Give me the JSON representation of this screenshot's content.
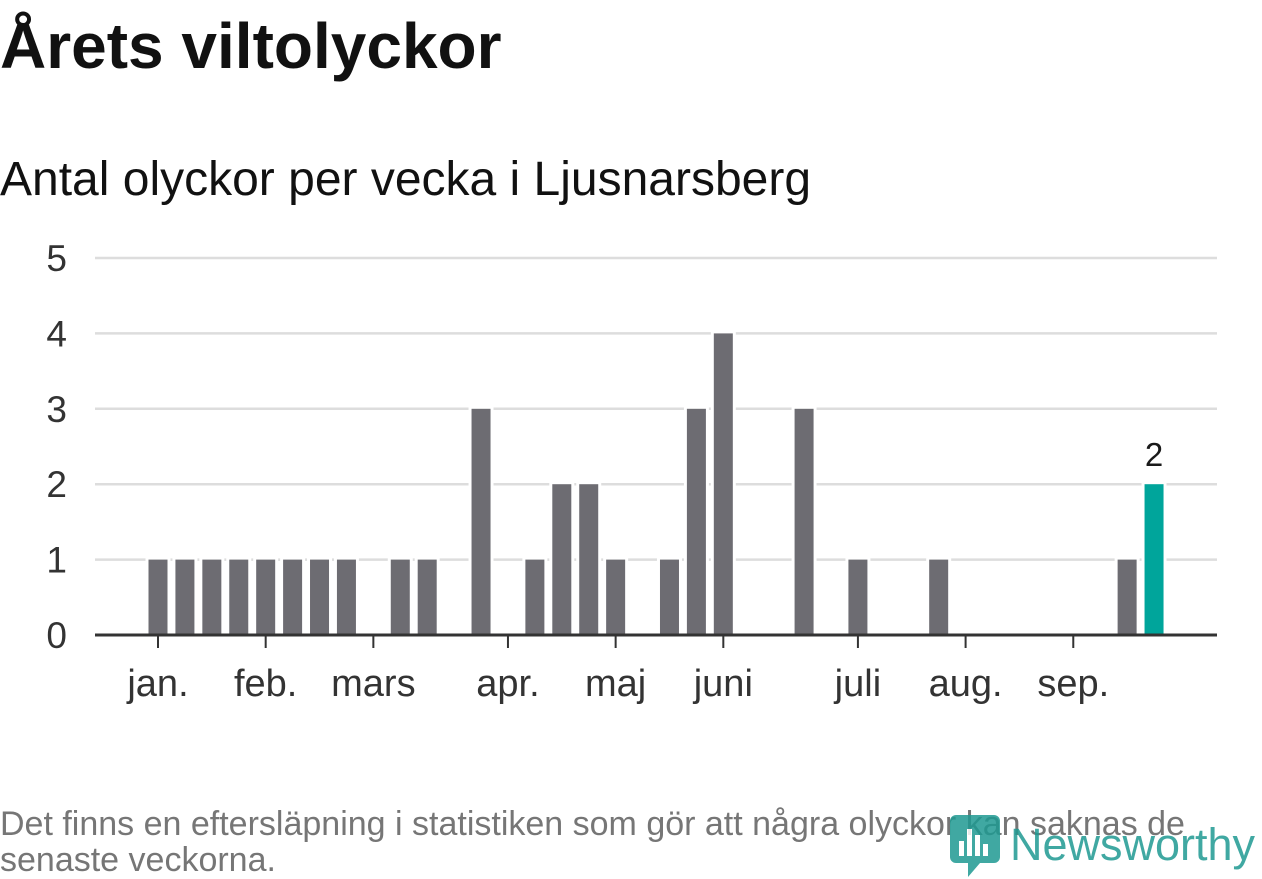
{
  "chart_data": {
    "type": "bar",
    "title": "Årets viltolyckor",
    "subtitle": "Antal olyckor per vecka i Ljusnarsberg",
    "x": [
      1,
      2,
      3,
      4,
      5,
      6,
      7,
      8,
      9,
      10,
      11,
      12,
      13,
      14,
      15,
      16,
      17,
      18,
      19,
      20,
      21,
      22,
      23,
      24,
      25,
      26,
      27,
      28,
      29,
      30,
      31,
      32,
      33,
      34,
      35,
      36,
      37,
      38
    ],
    "values": [
      1,
      1,
      1,
      1,
      1,
      1,
      1,
      1,
      0,
      1,
      1,
      0,
      3,
      0,
      1,
      2,
      2,
      1,
      0,
      1,
      3,
      4,
      0,
      0,
      3,
      0,
      1,
      0,
      0,
      1,
      0,
      0,
      0,
      0,
      0,
      0,
      1,
      2
    ],
    "x_ticks": [
      {
        "label": "jan.",
        "x": 1
      },
      {
        "label": "feb.",
        "x": 5
      },
      {
        "label": "mars",
        "x": 9
      },
      {
        "label": "apr.",
        "x": 14
      },
      {
        "label": "maj",
        "x": 18
      },
      {
        "label": "juni",
        "x": 22
      },
      {
        "label": "juli",
        "x": 27
      },
      {
        "label": "aug.",
        "x": 31
      },
      {
        "label": "sep.",
        "x": 35
      }
    ],
    "y_ticks": [
      0,
      1,
      2,
      3,
      4,
      5
    ],
    "ylim": [
      0,
      5
    ],
    "grid": true,
    "highlight": {
      "x": 38,
      "label": "2"
    },
    "colors": {
      "bar": "#6d6c72",
      "highlight": "#00a59b",
      "grid": "#dddddd",
      "axis": "#333333",
      "axis_text": "#333333",
      "label_text": "#1a1a1a"
    }
  },
  "footnote": "Det finns en eftersläpning i statistiken som gör att några olyckor kan saknas de senaste veckorna.",
  "logo": {
    "text": "Newsworthy",
    "icon": "newsworthy-logo-icon",
    "color": "#1f9a92"
  }
}
